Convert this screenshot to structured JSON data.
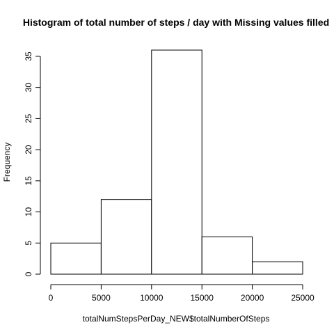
{
  "chart_data": {
    "type": "bar",
    "title": "Histogram of total number of steps / day with Missing values filled",
    "xlabel": "totalNumStepsPerDay_NEW$totalNumberOfSteps",
    "ylabel": "Frequency",
    "bins": [
      {
        "from": 0,
        "to": 5000,
        "count": 5
      },
      {
        "from": 5000,
        "to": 10000,
        "count": 12
      },
      {
        "from": 10000,
        "to": 15000,
        "count": 36
      },
      {
        "from": 15000,
        "to": 20000,
        "count": 6
      },
      {
        "from": 20000,
        "to": 25000,
        "count": 2
      }
    ],
    "xlim": [
      0,
      25000
    ],
    "ylim": [
      0,
      36
    ],
    "x_ticks": [
      0,
      5000,
      10000,
      15000,
      20000,
      25000
    ],
    "y_ticks": [
      0,
      5,
      10,
      15,
      20,
      25,
      30,
      35
    ],
    "grid": false,
    "legend": "none"
  }
}
